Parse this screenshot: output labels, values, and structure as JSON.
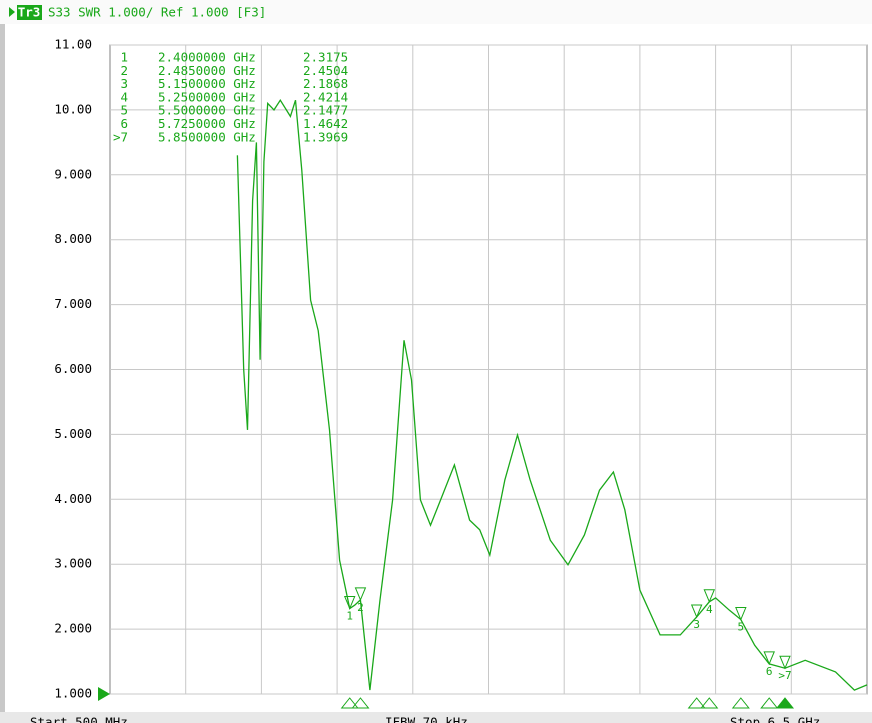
{
  "chart_data": {
    "type": "line",
    "trace_badge": "Tr3",
    "title": "S33 SWR 1.000/ Ref 1.000 [F3]",
    "color": "#1aa81a",
    "grid": true,
    "xlim": [
      0.5,
      6.5
    ],
    "ylim": [
      1,
      11
    ],
    "yticks": [
      {
        "value": 1,
        "label": "1.000"
      },
      {
        "value": 2,
        "label": "2.000"
      },
      {
        "value": 3,
        "label": "3.000"
      },
      {
        "value": 4,
        "label": "4.000"
      },
      {
        "value": 5,
        "label": "5.000"
      },
      {
        "value": 6,
        "label": "6.000"
      },
      {
        "value": 7,
        "label": "7.000"
      },
      {
        "value": 8,
        "label": "8.000"
      },
      {
        "value": 9,
        "label": "9.000"
      },
      {
        "value": 10,
        "label": "10.00"
      },
      {
        "value": 11,
        "label": "11.00"
      }
    ],
    "reference_value": 1,
    "x": [
      1.51,
      1.56,
      1.59,
      1.63,
      1.66,
      1.69,
      1.72,
      1.75,
      1.8,
      1.85,
      1.93,
      1.97,
      2.02,
      2.09,
      2.15,
      2.24,
      2.32,
      2.4,
      2.44,
      2.485,
      2.56,
      2.64,
      2.74,
      2.83,
      2.89,
      2.96,
      3.04,
      3.12,
      3.23,
      3.35,
      3.43,
      3.51,
      3.63,
      3.73,
      3.83,
      3.99,
      4.13,
      4.26,
      4.38,
      4.49,
      4.58,
      4.7,
      4.86,
      5.02,
      5.15,
      5.25,
      5.3,
      5.41,
      5.5,
      5.61,
      5.725,
      5.85,
      6.01,
      6.25,
      6.4,
      6.5
    ],
    "values": [
      9.3,
      6.0,
      5.07,
      8.6,
      9.5,
      6.15,
      9.2,
      10.1,
      10.0,
      10.15,
      9.9,
      10.15,
      9.07,
      7.07,
      6.6,
      5.07,
      3.06,
      2.3175,
      2.37,
      2.4504,
      1.06,
      2.45,
      3.99,
      6.45,
      5.84,
      3.99,
      3.6,
      3.99,
      4.53,
      3.68,
      3.53,
      3.14,
      4.3,
      4.99,
      4.3,
      3.37,
      2.99,
      3.45,
      4.14,
      4.42,
      3.84,
      2.6,
      1.91,
      1.91,
      2.1868,
      2.4214,
      2.48,
      2.29,
      2.1477,
      1.75,
      1.4642,
      1.3969,
      1.52,
      1.34,
      1.06,
      1.14
    ],
    "markers": [
      {
        "id": "1",
        "x": 2.4,
        "x_label": "2.4000000 GHz",
        "value": 2.3175
      },
      {
        "id": "2",
        "x": 2.485,
        "x_label": "2.4850000 GHz",
        "value": 2.4504
      },
      {
        "id": "3",
        "x": 5.15,
        "x_label": "5.1500000 GHz",
        "value": 2.1868
      },
      {
        "id": "4",
        "x": 5.25,
        "x_label": "5.2500000 GHz",
        "value": 2.4214
      },
      {
        "id": "5",
        "x": 5.5,
        "x_label": "5.5000000 GHz",
        "value": 2.1477
      },
      {
        "id": "6",
        "x": 5.725,
        "x_label": "5.7250000 GHz",
        "value": 1.4642
      },
      {
        "id": ">7",
        "x": 5.85,
        "x_label": "5.8500000 GHz",
        "value": 1.3969
      }
    ],
    "footer": [
      "Start 500 MHz",
      "IFBW 70 kHz",
      "Stop 6.5 GHz"
    ]
  }
}
